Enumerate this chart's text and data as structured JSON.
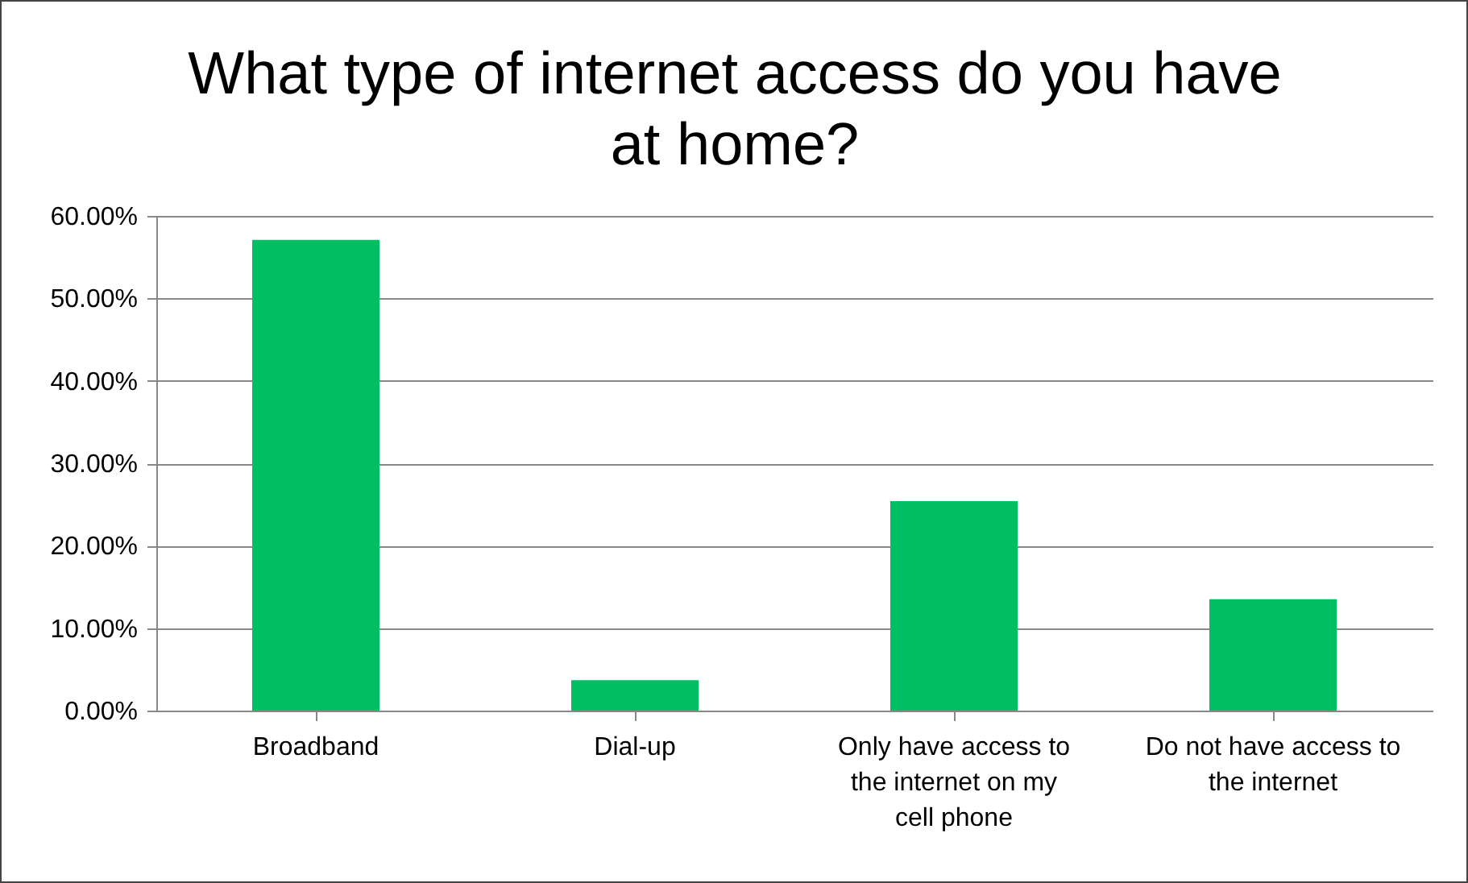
{
  "chart_data": {
    "type": "bar",
    "title": "What type of internet access do you have at home?",
    "categories": [
      "Broadband",
      "Dial-up",
      "Only have access to the internet on my cell phone",
      "Do not have access to the internet"
    ],
    "values": [
      57.1,
      3.7,
      25.4,
      13.5
    ],
    "color": "#00bf63",
    "ylim": [
      0,
      60
    ],
    "yticks": [
      {
        "value": 0,
        "label": "0.00%"
      },
      {
        "value": 10,
        "label": "10.00%"
      },
      {
        "value": 20,
        "label": "20.00%"
      },
      {
        "value": 30,
        "label": "30.00%"
      },
      {
        "value": 40,
        "label": "40.00%"
      },
      {
        "value": 50,
        "label": "50.00%"
      },
      {
        "value": 60,
        "label": "60.00%"
      }
    ],
    "grid": "y"
  }
}
